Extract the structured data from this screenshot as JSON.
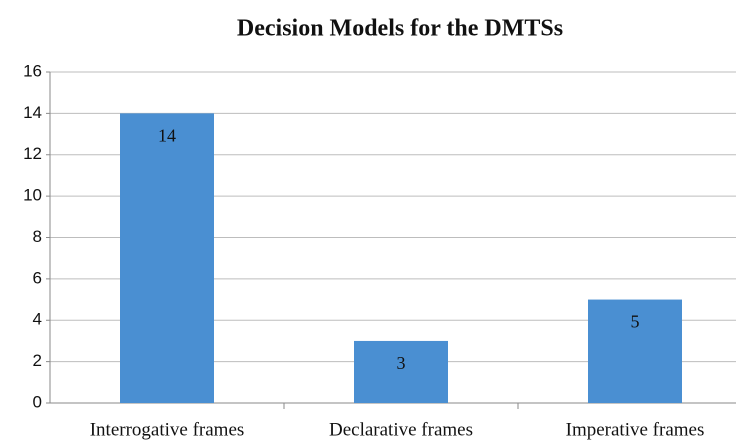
{
  "chart_data": {
    "type": "bar",
    "title": "Decision Models for the DMTSs",
    "categories": [
      "Interrogative frames",
      "Declarative frames",
      "Imperative frames"
    ],
    "values": [
      14,
      3,
      5
    ],
    "color": "#4a8fd2",
    "ylim": [
      0,
      16
    ],
    "yticks": [
      0,
      2,
      4,
      6,
      8,
      10,
      12,
      14,
      16
    ],
    "grid": true
  }
}
